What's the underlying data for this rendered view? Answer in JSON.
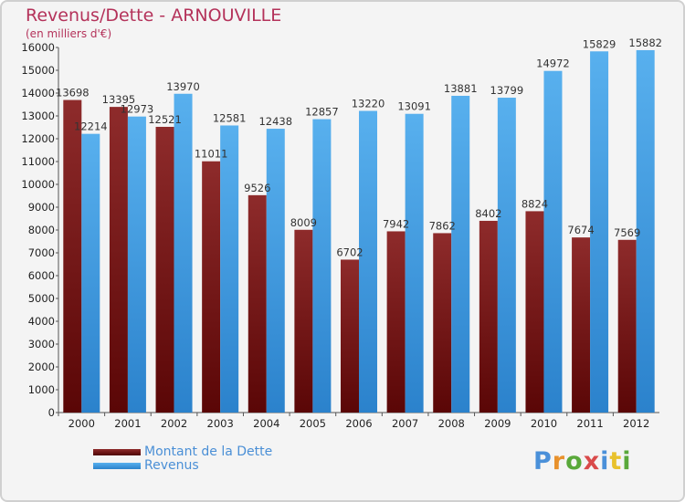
{
  "header": {
    "title": "Revenus/Dette - ARNOUVILLE",
    "subtitle": "(en milliers d'€)"
  },
  "brand": {
    "text": "Proxiti"
  },
  "colors": {
    "dette": "#7b1c1c",
    "revenus": "#3b9be2",
    "title": "#b4325a",
    "legend_text": "#4a8fd6"
  },
  "chart_data": {
    "type": "bar",
    "title": "Revenus/Dette - ARNOUVILLE",
    "subtitle": "(en milliers d'€)",
    "categories": [
      "2000",
      "2001",
      "2002",
      "2003",
      "2004",
      "2005",
      "2006",
      "2007",
      "2008",
      "2009",
      "2010",
      "2011",
      "2012"
    ],
    "series": [
      {
        "name": "Montant de la Dette",
        "values": [
          13698,
          13395,
          12521,
          11011,
          9526,
          8009,
          6702,
          7942,
          7862,
          8402,
          8824,
          7674,
          7569
        ],
        "labels": [
          "13698",
          "13395",
          "12521",
          "11011",
          "9526",
          "8009",
          "6702",
          "7942",
          "7862",
          "8402",
          "8824",
          "7674",
          "7569"
        ]
      },
      {
        "name": "Revenus",
        "values": [
          12214,
          12973,
          13970,
          12581,
          12438,
          12857,
          13220,
          13091,
          13881,
          13799,
          14972,
          15829,
          15882
        ],
        "labels": [
          "12214",
          "12973",
          "13970",
          "12581",
          "12438",
          "12857",
          "13220",
          "13091",
          "13881",
          "13799",
          "14972",
          "15829",
          "15882"
        ]
      }
    ],
    "ylim": [
      0,
      16000
    ],
    "yticks": [
      "0",
      "1000",
      "2000",
      "3000",
      "4000",
      "5000",
      "6000",
      "7000",
      "8000",
      "9000",
      "10000",
      "11000",
      "12000",
      "13000",
      "14000",
      "15000",
      "16000"
    ],
    "grid": false,
    "legend_position": "bottom-left"
  }
}
